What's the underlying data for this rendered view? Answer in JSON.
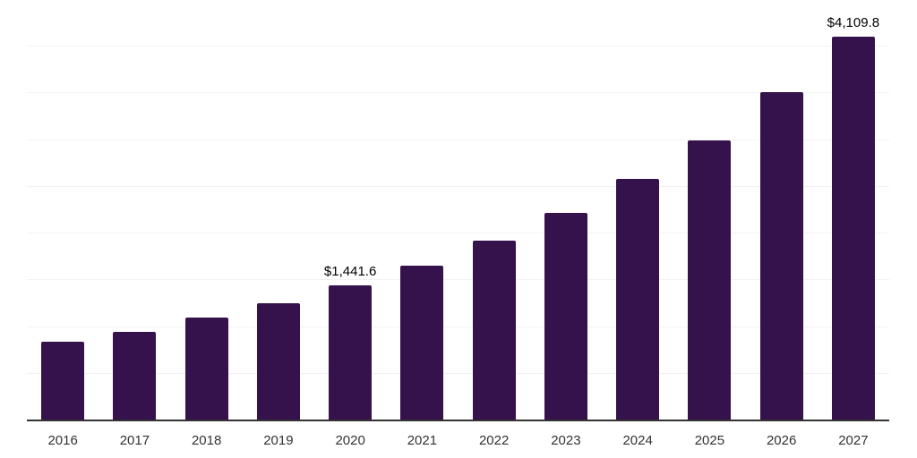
{
  "chart_data": {
    "type": "bar",
    "categories": [
      "2016",
      "2017",
      "2018",
      "2019",
      "2020",
      "2021",
      "2022",
      "2023",
      "2024",
      "2025",
      "2026",
      "2027"
    ],
    "values": [
      840,
      945,
      1100,
      1250,
      1441.6,
      1660,
      1920,
      2225,
      2590,
      3000,
      3510,
      4109.8
    ],
    "data_labels": [
      {
        "category": "2020",
        "text": "$1,441.6"
      },
      {
        "category": "2027",
        "text": "$4,109.8"
      }
    ],
    "xlabel": "",
    "ylabel": "",
    "ylim": [
      0,
      4500
    ],
    "gridline_interval": 500,
    "grid": "horizontal-only",
    "legend": "none",
    "y_axis_labels_visible": false,
    "colors": {
      "bar": "#35124B",
      "gridline": "#F2F2F2",
      "axis_line": "#333333",
      "tick_label": "#333333",
      "data_label": "#000000",
      "background": "#FFFFFF"
    }
  }
}
